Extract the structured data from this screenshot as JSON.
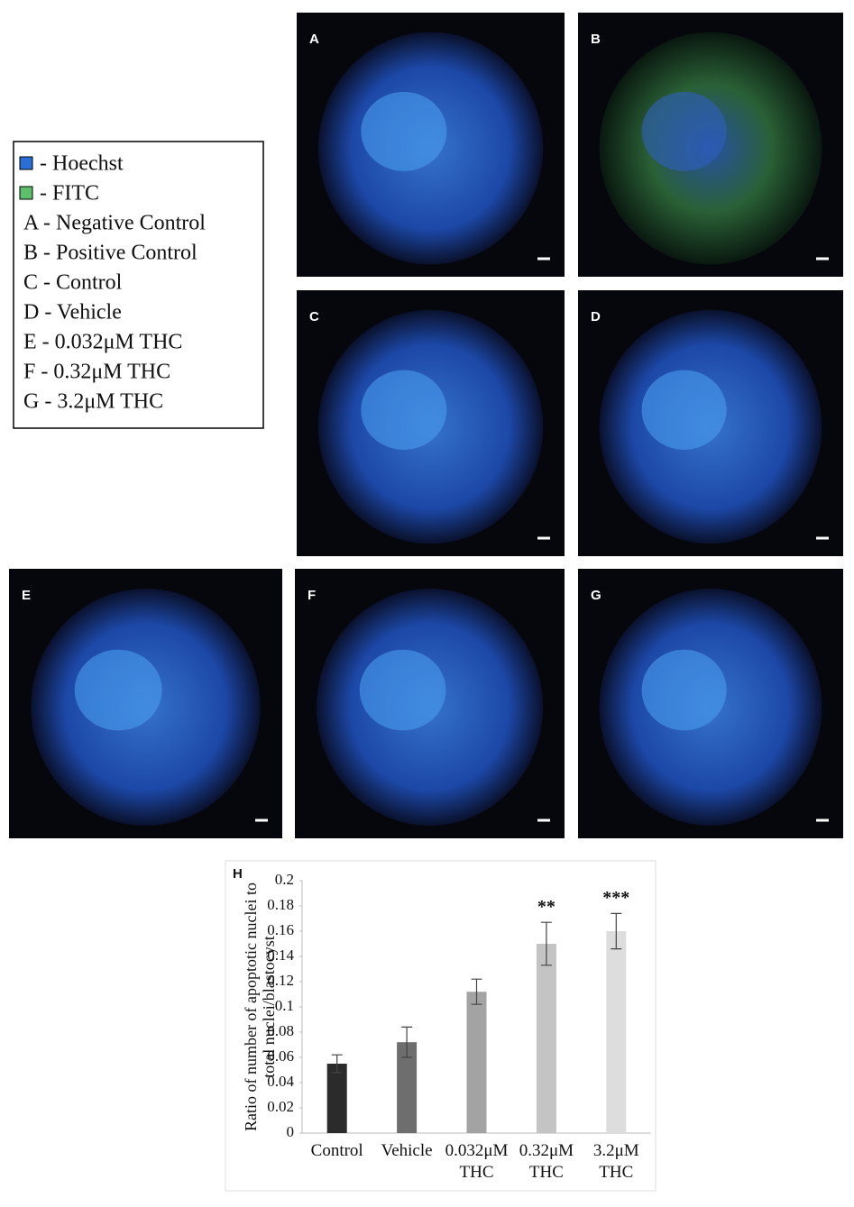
{
  "legend": {
    "items": [
      "- Hoechst",
      "- FITC",
      "A - Negative Control",
      "B - Positive Control",
      "C - Control",
      "D - Vehicle",
      "E - 0.032μM THC",
      "F - 0.32μM THC",
      "G - 3.2μM THC"
    ]
  },
  "panels": [
    "A",
    "B",
    "C",
    "D",
    "E",
    "F",
    "G"
  ],
  "chart_data": {
    "type": "bar",
    "panel_label": "H",
    "y_label": "Ratio of number of apoptotic nuclei to total nuclei/blastocyst",
    "categories": [
      "Control",
      "Vehicle",
      "0.032μM THC",
      "0.32μM THC",
      "3.2μM THC"
    ],
    "values": [
      0.055,
      0.072,
      0.112,
      0.15,
      0.16
    ],
    "errors": [
      0.007,
      0.012,
      0.01,
      0.017,
      0.014
    ],
    "colors": [
      "#2b2b2b",
      "#6e6e6e",
      "#a3a3a3",
      "#c4c4c4",
      "#dddddd"
    ],
    "annotations": [
      {
        "text": "**",
        "category": "0.32μM THC"
      },
      {
        "text": "***",
        "category": "3.2μM THC"
      }
    ],
    "ylim": [
      0,
      0.2
    ],
    "yticks": [
      0,
      0.02,
      0.04,
      0.06,
      0.08,
      0.1,
      0.12,
      0.14,
      0.16,
      0.18,
      0.2
    ]
  }
}
